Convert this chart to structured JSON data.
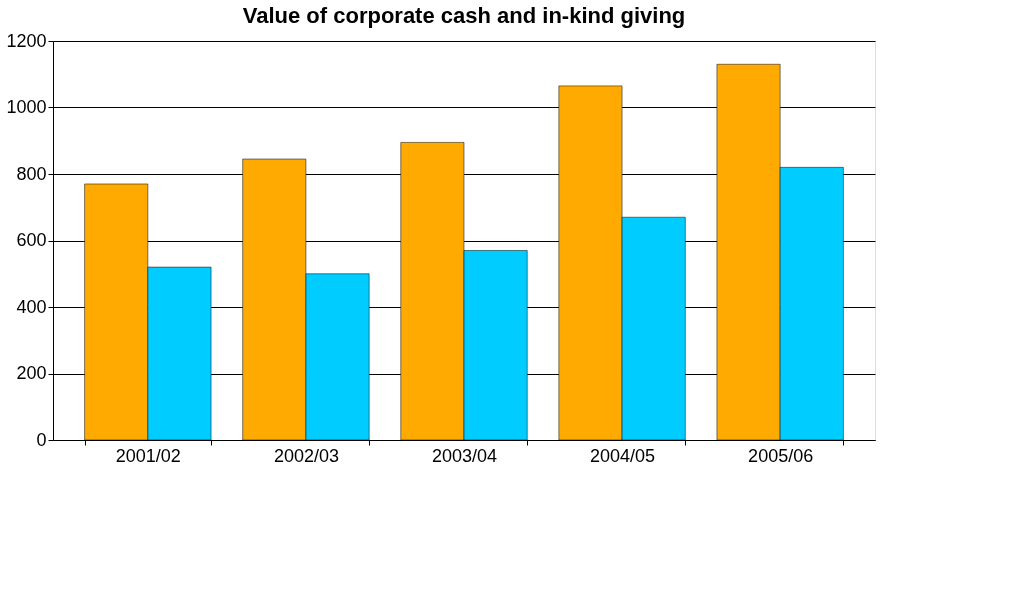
{
  "chart_data": {
    "type": "bar",
    "title": "Value of corporate cash and in-kind giving",
    "categories": [
      "2001/02",
      "2002/03",
      "2003/04",
      "2004/05",
      "2005/06"
    ],
    "series": [
      {
        "color": "#ffaa00",
        "values": [
          770,
          845,
          895,
          1065,
          1130
        ]
      },
      {
        "color": "#00ccff",
        "values": [
          520,
          500,
          570,
          670,
          820
        ]
      }
    ],
    "ylim": [
      0,
      1200
    ],
    "yticks": [
      0,
      200,
      400,
      600,
      800,
      1000,
      1200
    ],
    "grid": "y"
  }
}
